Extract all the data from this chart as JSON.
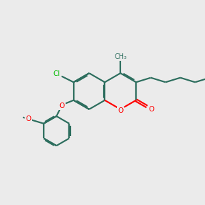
{
  "bg_color": "#ebebeb",
  "bond_color": "#2d6e5e",
  "oxygen_color": "#ff0000",
  "chlorine_color": "#00bb00",
  "line_width": 1.6,
  "dbo": 0.055,
  "figsize": [
    3.0,
    3.0
  ],
  "dpi": 100,
  "xlim": [
    0,
    10
  ],
  "ylim": [
    0,
    10
  ]
}
